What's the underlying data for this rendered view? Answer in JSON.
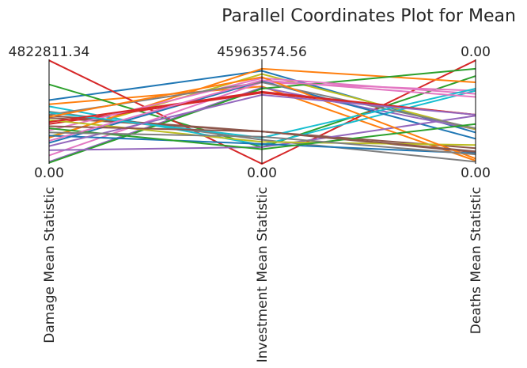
{
  "chart_data": {
    "type": "parallel_coordinates",
    "title": "Parallel Coordinates Plot for Mean",
    "axes": [
      {
        "label": "Damage Mean Statistic",
        "max": 4822811.34,
        "max_label": "4822811.34",
        "min_label": "0.00"
      },
      {
        "label": "Investment Mean Statistic",
        "max": 45963574.56,
        "max_label": "45963574.56",
        "min_label": "0.00"
      },
      {
        "label": "Deaths Mean Statistic",
        "max": 0.0,
        "max_label": "0.00",
        "min_label": "0.00"
      }
    ],
    "grid": false,
    "normalized_lines": [
      {
        "color": "#1f77b4",
        "values": [
          0.61,
          0.89,
          0.3
        ]
      },
      {
        "color": "#ff7f0e",
        "values": [
          0.57,
          0.74,
          0.03
        ]
      },
      {
        "color": "#2ca02c",
        "values": [
          0.76,
          0.16,
          0.84
        ]
      },
      {
        "color": "#d62728",
        "values": [
          0.99,
          0.0,
          0.99
        ]
      },
      {
        "color": "#9467bd",
        "values": [
          0.02,
          0.73,
          0.33
        ]
      },
      {
        "color": "#8c564b",
        "values": [
          0.44,
          0.31,
          0.15
        ]
      },
      {
        "color": "#e377c2",
        "values": [
          0.08,
          0.78,
          0.7
        ]
      },
      {
        "color": "#7f7f7f",
        "values": [
          0.5,
          0.23,
          0.02
        ]
      },
      {
        "color": "#bcbd22",
        "values": [
          0.26,
          0.86,
          0.33
        ]
      },
      {
        "color": "#17becf",
        "values": [
          0.55,
          0.18,
          0.7
        ]
      },
      {
        "color": "#1f77b4",
        "values": [
          0.2,
          0.79,
          0.24
        ]
      },
      {
        "color": "#ff7f0e",
        "values": [
          0.25,
          0.91,
          0.78
        ]
      },
      {
        "color": "#2ca02c",
        "values": [
          0.01,
          0.72,
          0.91
        ]
      },
      {
        "color": "#d62728",
        "values": [
          0.38,
          0.68,
          0.47
        ]
      },
      {
        "color": "#9467bd",
        "values": [
          0.13,
          0.16,
          0.46
        ]
      },
      {
        "color": "#8c564b",
        "values": [
          0.46,
          0.31,
          0.11
        ]
      },
      {
        "color": "#e377c2",
        "values": [
          0.32,
          0.82,
          0.67
        ]
      },
      {
        "color": "#7f7f7f",
        "values": [
          0.47,
          0.78,
          0.34
        ]
      },
      {
        "color": "#bcbd22",
        "values": [
          0.42,
          0.21,
          0.18
        ]
      },
      {
        "color": "#17becf",
        "values": [
          0.49,
          0.25,
          0.72
        ]
      },
      {
        "color": "#1f77b4",
        "values": [
          0.27,
          0.19,
          0.1
        ]
      },
      {
        "color": "#ff7f0e",
        "values": [
          0.45,
          0.83,
          0.05
        ]
      },
      {
        "color": "#2ca02c",
        "values": [
          0.34,
          0.14,
          0.38
        ]
      },
      {
        "color": "#d62728",
        "values": [
          0.4,
          0.69,
          0.47
        ]
      },
      {
        "color": "#9467bd",
        "values": [
          0.17,
          0.66,
          0.47
        ]
      },
      {
        "color": "#8c564b",
        "values": [
          0.36,
          0.31,
          0.12
        ]
      },
      {
        "color": "#e377c2",
        "values": [
          0.22,
          0.8,
          0.64
        ]
      },
      {
        "color": "#7f7f7f",
        "values": [
          0.3,
          0.26,
          0.09
        ]
      }
    ]
  }
}
